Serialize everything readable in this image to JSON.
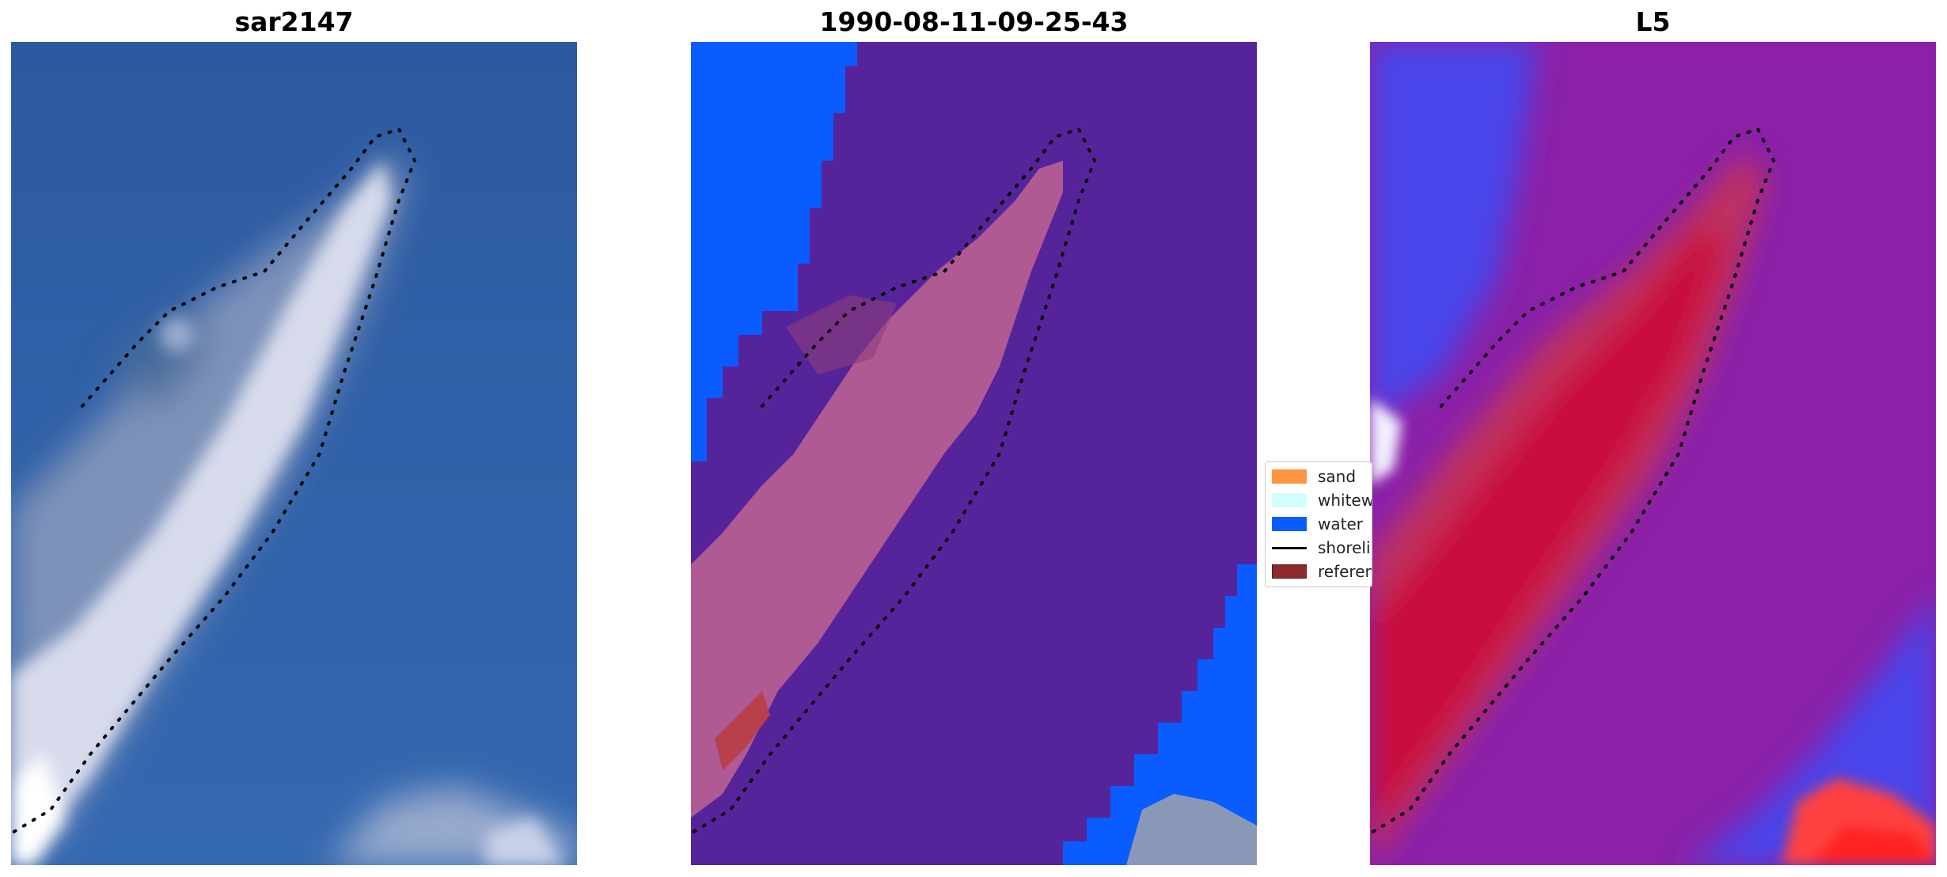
{
  "panels": [
    {
      "title": "sar2147"
    },
    {
      "title": "1990-08-11-09-25-43"
    },
    {
      "title": "L5"
    }
  ],
  "legend": {
    "items": [
      {
        "label": "sand",
        "color": "#ff9441",
        "type": "patch"
      },
      {
        "label": "whitewater",
        "color": "#d1fffc",
        "type": "patch"
      },
      {
        "label": "water",
        "color": "#0a5cff",
        "type": "patch"
      },
      {
        "label": "shoreline",
        "color": "#000000",
        "type": "line"
      },
      {
        "label": "reference shoreline buffer",
        "color": "#8b2a2a",
        "type": "patch"
      }
    ]
  },
  "colors": {
    "ocean_rgb": "#2d5ca6",
    "classified_background": "#55249a",
    "water_class": "#0a5cff",
    "sand_overlay": "#b05a94",
    "mndwi_low": "#3a3ff0",
    "mndwi_mid": "#8a21a8",
    "mndwi_high": "#c20a3a"
  }
}
